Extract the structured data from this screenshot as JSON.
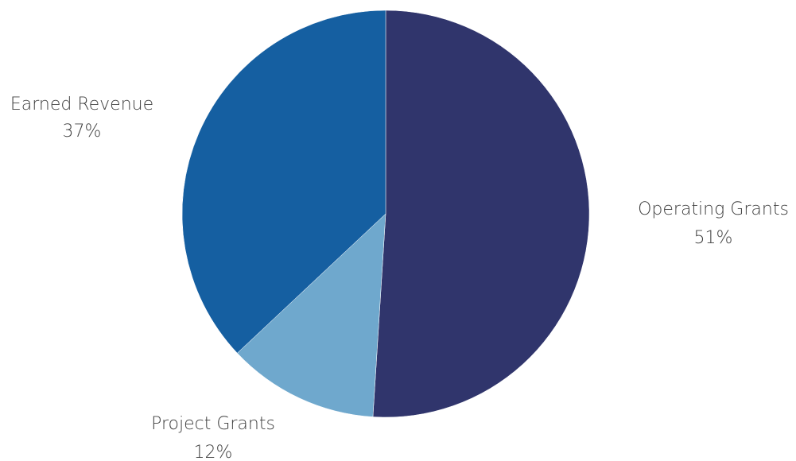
{
  "chart_data": {
    "type": "pie",
    "title": "",
    "slices": [
      {
        "name": "Operating Grants",
        "value": 51,
        "percent_label": "51%",
        "color": "#30356c"
      },
      {
        "name": "Project Grants",
        "value": 12,
        "percent_label": "12%",
        "color": "#6fa8cd"
      },
      {
        "name": "Earned Revenue",
        "value": 37,
        "percent_label": "37%",
        "color": "#155fa1"
      }
    ],
    "start_angle": "12 o'clock",
    "direction": "clockwise",
    "legend": "none",
    "labels": "outside"
  }
}
